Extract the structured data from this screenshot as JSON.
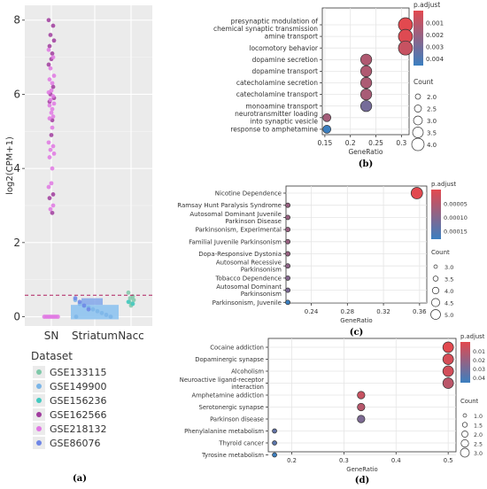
{
  "chart_data": [
    {
      "panel": "(a)",
      "type": "scatter",
      "ylabel": "log2(CPM+1)",
      "categories": [
        "SN",
        "Striatum",
        "Nacc"
      ],
      "yticks": [
        0,
        2,
        4,
        6,
        8
      ],
      "ylim": [
        -0.25,
        8.4
      ],
      "threshold": 0.58,
      "legend_title": "Dataset",
      "series": [
        {
          "name": "GSE133115",
          "color": "#7fc8a9"
        },
        {
          "name": "GSE149900",
          "color": "#7bb5e8"
        },
        {
          "name": "GSE156236",
          "color": "#43c9c0"
        },
        {
          "name": "GSE162566",
          "color": "#a03c9e"
        },
        {
          "name": "GSE218132",
          "color": "#e078e3"
        },
        {
          "name": "GSE86076",
          "color": "#6f86e6"
        }
      ],
      "points": {
        "SN": {
          "GSE162566": [
            8.0,
            7.85,
            7.6,
            7.45,
            7.3,
            7.1,
            6.95,
            6.8,
            6.2,
            6.0,
            5.9,
            5.8,
            5.3,
            4.9,
            3.3,
            3.2,
            2.8
          ],
          "GSE218132": [
            7.2,
            7.0,
            6.7,
            6.5,
            6.4,
            6.3,
            6.1,
            6.05,
            5.95,
            5.85,
            5.75,
            5.7,
            5.6,
            5.5,
            5.4,
            5.35,
            5.1,
            4.7,
            4.6,
            4.5,
            4.4,
            4.3,
            4.0,
            3.6,
            3.5,
            3.0,
            2.9,
            0.0,
            0.0,
            0.0,
            0.0,
            0.0,
            0.0,
            0.0,
            0.0
          ]
        },
        "Striatum": {
          "GSE149900": [
            0.45,
            0.35,
            0.3,
            0.25,
            0.2,
            0.15,
            0.1,
            0.05,
            0.0,
            0.0
          ],
          "GSE86076": [
            0.5,
            0.4,
            0.3,
            0.2
          ]
        },
        "Nacc": {
          "GSE133115": [
            0.65,
            0.55,
            0.5,
            0.45,
            0.4,
            0.35,
            0.3
          ],
          "GSE156236": [
            0.4,
            0.35
          ]
        }
      }
    },
    {
      "panel": "(b)",
      "type": "scatter",
      "xlabel": "GeneRatio",
      "xticks": [
        0.15,
        0.2,
        0.25,
        0.3
      ],
      "xlim": [
        0.145,
        0.315
      ],
      "color_label": "p.adjust",
      "color_ticks": [
        "0.001",
        "0.002",
        "0.003",
        "0.004"
      ],
      "size_label": "Count",
      "size_ticks": [
        "2.0",
        "2.5",
        "3.0",
        "3.5",
        "4.0"
      ],
      "terms": [
        {
          "label": [
            "presynaptic modulation of",
            "chemical synaptic transmission"
          ],
          "x": 0.308,
          "count": 4,
          "p": 0.0002
        },
        {
          "label": [
            "amine transport"
          ],
          "x": 0.308,
          "count": 4,
          "p": 0.0003
        },
        {
          "label": [
            "locomotory behavior"
          ],
          "x": 0.308,
          "count": 4,
          "p": 0.0009
        },
        {
          "label": [
            "dopamine secretion"
          ],
          "x": 0.231,
          "count": 3,
          "p": 0.0015
        },
        {
          "label": [
            "dopamine transport"
          ],
          "x": 0.231,
          "count": 3,
          "p": 0.0015
        },
        {
          "label": [
            "catecholamine secretion"
          ],
          "x": 0.231,
          "count": 3,
          "p": 0.0016
        },
        {
          "label": [
            "catecholamine transport"
          ],
          "x": 0.231,
          "count": 3,
          "p": 0.0017
        },
        {
          "label": [
            "monoamine transport"
          ],
          "x": 0.231,
          "count": 3,
          "p": 0.003
        },
        {
          "label": [
            "neurotransmitter loading",
            "into synaptic vesicle"
          ],
          "x": 0.154,
          "count": 2,
          "p": 0.0018
        },
        {
          "label": [
            "response to amphetamine"
          ],
          "x": 0.154,
          "count": 2,
          "p": 0.0045
        }
      ]
    },
    {
      "panel": "(c)",
      "type": "scatter",
      "xlabel": "GeneRatio",
      "xticks": [
        0.24,
        0.28,
        0.32,
        0.36
      ],
      "xlim": [
        0.212,
        0.368
      ],
      "color_label": "p.adjust",
      "color_ticks": [
        "0.00005",
        "0.00010",
        "0.00015"
      ],
      "size_label": "Count",
      "size_ticks": [
        "3.0",
        "3.5",
        "4.0",
        "4.5",
        "5.0"
      ],
      "terms": [
        {
          "label": [
            "Nicotine Dependence"
          ],
          "x": 0.357,
          "count": 5,
          "p": 1e-05
        },
        {
          "label": [
            "Ramsay Hunt Paralysis Syndrome"
          ],
          "x": 0.214,
          "count": 3,
          "p": 9e-05
        },
        {
          "label": [
            "Autosomal Dominant Juvenile",
            "Parkinson Disease"
          ],
          "x": 0.214,
          "count": 3,
          "p": 9e-05
        },
        {
          "label": [
            "Parkinsonism, Experimental"
          ],
          "x": 0.214,
          "count": 3,
          "p": 9e-05
        },
        {
          "label": [
            "Familial Juvenile Parkinsonism"
          ],
          "x": 0.214,
          "count": 3,
          "p": 9e-05
        },
        {
          "label": [
            "Dopa-Responsive Dystonia"
          ],
          "x": 0.214,
          "count": 3,
          "p": 9e-05
        },
        {
          "label": [
            "Autosomal Recessive",
            "Parkinsonism"
          ],
          "x": 0.214,
          "count": 3,
          "p": 0.0001
        },
        {
          "label": [
            "Tobacco Dependence"
          ],
          "x": 0.214,
          "count": 3,
          "p": 0.00011
        },
        {
          "label": [
            "Autosomal Dominant",
            "Parkinsonism"
          ],
          "x": 0.214,
          "count": 3,
          "p": 0.00012
        },
        {
          "label": [
            "Parkinsonism, Juvenile"
          ],
          "x": 0.214,
          "count": 3,
          "p": 0.00019
        }
      ]
    },
    {
      "panel": "(d)",
      "type": "scatter",
      "xlabel": "GeneRatio",
      "xticks": [
        0.2,
        0.3,
        0.4,
        0.5
      ],
      "xlim": [
        0.155,
        0.515
      ],
      "color_label": "p.adjust",
      "color_ticks": [
        "0.01",
        "0.02",
        "0.03",
        "0.04"
      ],
      "size_label": "Count",
      "size_ticks": [
        "1.0",
        "1.5",
        "2.0",
        "2.5",
        "3.0"
      ],
      "terms": [
        {
          "label": [
            "Cocaine addiction"
          ],
          "x": 0.5,
          "count": 3,
          "p": 0.002
        },
        {
          "label": [
            "Dopaminergic synapse"
          ],
          "x": 0.5,
          "count": 3,
          "p": 0.005
        },
        {
          "label": [
            "Alcoholism"
          ],
          "x": 0.5,
          "count": 3,
          "p": 0.006
        },
        {
          "label": [
            "Neuroactive ligand-receptor",
            "interaction"
          ],
          "x": 0.5,
          "count": 3,
          "p": 0.012
        },
        {
          "label": [
            "Amphetamine addiction"
          ],
          "x": 0.333,
          "count": 2,
          "p": 0.009
        },
        {
          "label": [
            "Serotonergic synapse"
          ],
          "x": 0.333,
          "count": 2,
          "p": 0.013
        },
        {
          "label": [
            "Parkinson disease"
          ],
          "x": 0.333,
          "count": 2,
          "p": 0.028
        },
        {
          "label": [
            "Phenylalanine metabolism"
          ],
          "x": 0.167,
          "count": 1,
          "p": 0.035
        },
        {
          "label": [
            "Thyroid cancer"
          ],
          "x": 0.167,
          "count": 1,
          "p": 0.037
        },
        {
          "label": [
            "Tyrosine metabolism"
          ],
          "x": 0.167,
          "count": 1,
          "p": 0.045
        }
      ]
    }
  ]
}
